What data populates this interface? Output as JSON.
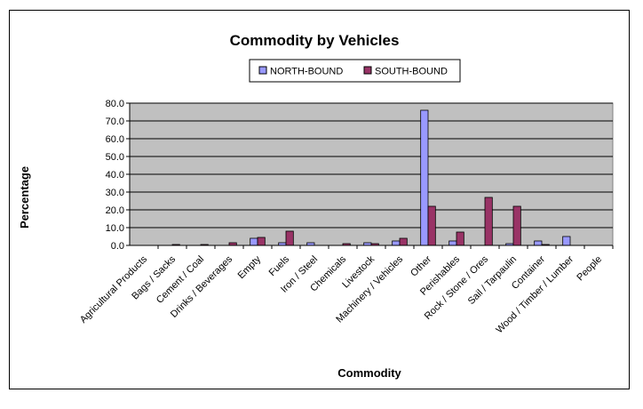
{
  "chart_data": {
    "type": "bar",
    "title": "Commodity by Vehicles",
    "xlabel": "Commodity",
    "ylabel": "Percentage",
    "ylim": [
      0,
      80
    ],
    "yticks": [
      "0.0",
      "10.0",
      "20.0",
      "30.0",
      "40.0",
      "50.0",
      "60.0",
      "70.0",
      "80.0"
    ],
    "grid": true,
    "legend_position": "top-center",
    "plot_background": "#c0c0c0",
    "categories": [
      "Agricultural Products",
      "Bags / Sacks",
      "Cement / Coal",
      "Drinks / Beverages",
      "Empty",
      "Fuels",
      "Iron / Steel",
      "Chemicals",
      "Livestock",
      "Machinery / Vehicles",
      "Other",
      "Perishables",
      "Rock / Stone / Ores",
      "Sail / Tarpaulin",
      "Container",
      "Wood / Timber / Lumber",
      "People"
    ],
    "series": [
      {
        "name": "NORTH-BOUND",
        "color": "#9999ff",
        "values": [
          0.0,
          0.0,
          0.0,
          0.0,
          4.0,
          1.5,
          1.5,
          0.0,
          1.5,
          2.5,
          76.0,
          2.5,
          0.0,
          1.0,
          2.5,
          5.0,
          0.0
        ]
      },
      {
        "name": "SOUTH-BOUND",
        "color": "#993366",
        "values": [
          0.0,
          0.5,
          0.5,
          1.5,
          4.5,
          8.0,
          0.0,
          1.0,
          1.0,
          4.0,
          22.0,
          7.5,
          27.0,
          22.0,
          0.5,
          0.0,
          0.0
        ]
      }
    ]
  }
}
